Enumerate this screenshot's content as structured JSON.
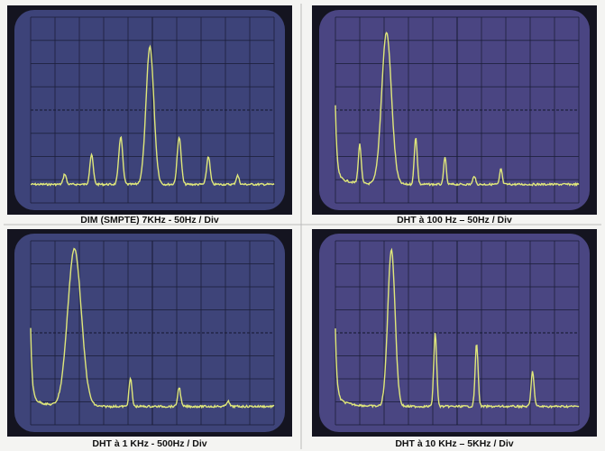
{
  "panels": [
    {
      "caption": "DIM (SMPTE) 7KHz - 50Hz / Div"
    },
    {
      "caption": "DHT à 100 Hz – 50Hz / Div"
    },
    {
      "caption": "DHT à 1 KHz - 500Hz / Div"
    },
    {
      "caption": "DHT à 10 KHz – 5KHz / Div"
    }
  ]
}
